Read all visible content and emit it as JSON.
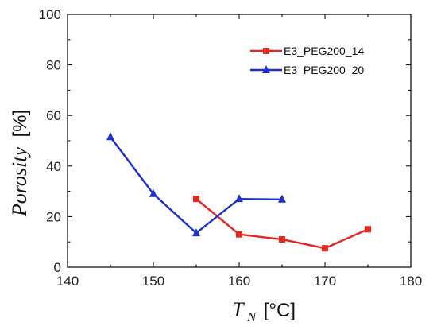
{
  "chart_data": {
    "type": "line",
    "xlabel": {
      "symbol": "T",
      "subscript": "N",
      "unit": "[°C]"
    },
    "ylabel": {
      "symbol": "Porosity",
      "unit": "[%]"
    },
    "xlim": [
      140,
      180
    ],
    "ylim": [
      0,
      100
    ],
    "xticks": [
      140,
      150,
      160,
      170,
      180
    ],
    "yticks": [
      0,
      20,
      40,
      60,
      80,
      100
    ],
    "grid": false,
    "legend_position": "top-right",
    "series": [
      {
        "name": "E3_PEG200_14",
        "color": "#e8251f",
        "marker": "square",
        "x": [
          155,
          160,
          165,
          170,
          175
        ],
        "y": [
          27,
          13,
          11,
          7.5,
          15
        ]
      },
      {
        "name": "E3_PEG200_20",
        "color": "#1f2fd6",
        "marker": "triangle",
        "x": [
          145,
          150,
          155,
          160,
          165
        ],
        "y": [
          51.5,
          29,
          13.5,
          27,
          26.8
        ]
      }
    ]
  }
}
